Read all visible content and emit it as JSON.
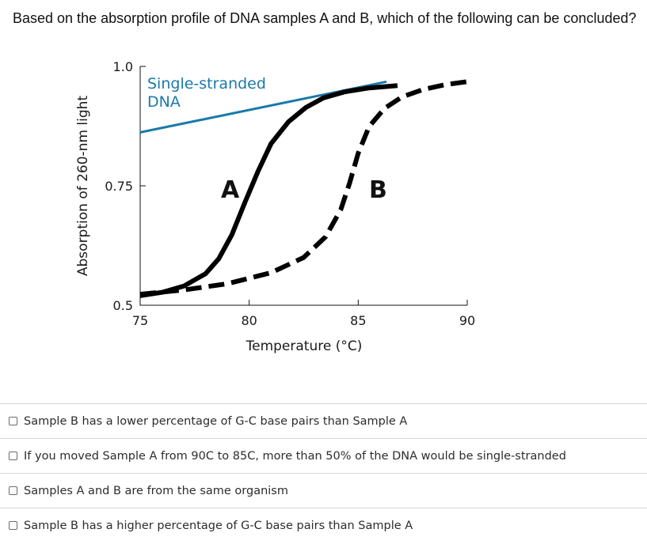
{
  "question": {
    "text": "Based on the absorption profile of DNA samples A and B, which of the following can be concluded?"
  },
  "chart_data": {
    "type": "line",
    "title": "",
    "xlabel": "Temperature (°C)",
    "ylabel": "Absorption of 260-nm light",
    "xlim": [
      75,
      90
    ],
    "ylim": [
      0.5,
      1.0
    ],
    "x_ticks": [
      "75",
      "80",
      "85",
      "90"
    ],
    "y_ticks": [
      "1.0",
      "0.75",
      "0.5"
    ],
    "grid": false,
    "annotations": [
      {
        "text_lines": [
          "Single-stranded",
          "DNA"
        ],
        "color": "#1a7aa8"
      },
      {
        "text": "A"
      },
      {
        "text": "B"
      }
    ],
    "series": [
      {
        "style": "solid",
        "color": "#1a7aa8",
        "x": [
          75,
          86.3
        ],
        "y": [
          0.862,
          0.968
        ]
      },
      {
        "style": "solid",
        "color": "#000000",
        "x": [
          75,
          76,
          77,
          78,
          78.6,
          79.2,
          79.8,
          80.4,
          81,
          81.8,
          82.6,
          83.4,
          84.4,
          85.5,
          86.8
        ],
        "y": [
          0.52,
          0.527,
          0.54,
          0.566,
          0.597,
          0.647,
          0.715,
          0.78,
          0.838,
          0.884,
          0.914,
          0.934,
          0.947,
          0.955,
          0.96
        ]
      },
      {
        "style": "dashed",
        "color": "#000000",
        "x": [
          75,
          77,
          79,
          81,
          82.5,
          83.5,
          84.2,
          84.6,
          85,
          85.5,
          86.2,
          87,
          88,
          89,
          90
        ],
        "y": [
          0.523,
          0.532,
          0.545,
          0.568,
          0.6,
          0.643,
          0.7,
          0.755,
          0.818,
          0.874,
          0.912,
          0.936,
          0.952,
          0.962,
          0.968
        ]
      }
    ]
  },
  "options": [
    {
      "label": "Sample B has a lower percentage of G-C base pairs than Sample A"
    },
    {
      "label": "If you moved Sample A from 90\u001fC to 85\u001fC, more than 50% of the DNA would be single-stranded"
    },
    {
      "label": "Samples A and B are from the same organism"
    },
    {
      "label": "Sample B has a higher percentage of G-C base pairs than Sample A"
    }
  ]
}
